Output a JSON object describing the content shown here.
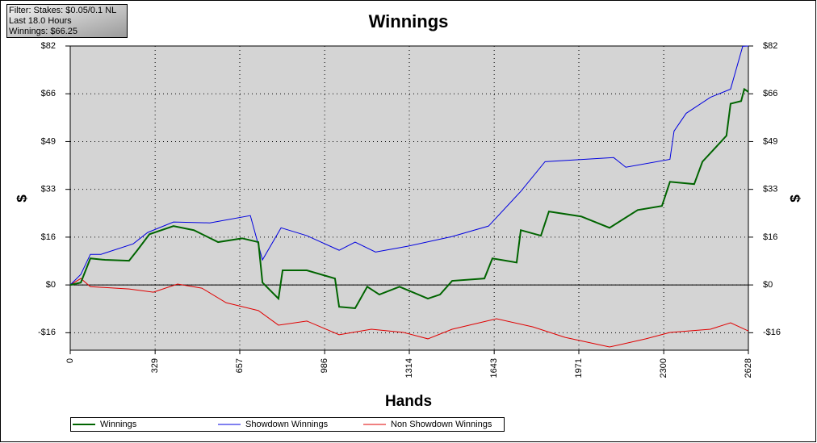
{
  "filter": [
    "Filter: Stakes: $0.05/0.1 NL",
    "Last 18.0 Hours",
    "Winnings: $66.25"
  ],
  "chart_data": {
    "type": "line",
    "title": "Winnings",
    "x_label": "Hands",
    "y_label": "$",
    "y2_label": "$",
    "grid": true,
    "xlim": [
      0,
      2628
    ],
    "xticks": [
      0,
      329,
      657,
      986,
      1314,
      1643,
      1971,
      2300,
      2628
    ],
    "ylim": [
      -22.4,
      82
    ],
    "yticks": [
      {
        "value": -16.4,
        "label": "-$16"
      },
      {
        "value": 0,
        "label": "$0"
      },
      {
        "value": 16.4,
        "label": "$16"
      },
      {
        "value": 32.8,
        "label": "$33"
      },
      {
        "value": 49.2,
        "label": "$49"
      },
      {
        "value": 65.6,
        "label": "$66"
      },
      {
        "value": 82,
        "label": "$82"
      }
    ],
    "series": [
      {
        "name": "Winnings",
        "color": "#006400",
        "x": [
          0,
          41,
          78,
          135,
          228,
          260,
          307,
          400,
          479,
          573,
          666,
          729,
          745,
          807,
          823,
          917,
          1026,
          1042,
          1104,
          1151,
          1198,
          1276,
          1386,
          1433,
          1480,
          1605,
          1636,
          1730,
          1746,
          1824,
          1855,
          1980,
          2090,
          2199,
          2293,
          2324,
          2418,
          2450,
          2543,
          2559,
          2600,
          2612,
          2628
        ],
        "values": [
          0,
          0.8,
          9.1,
          8.6,
          8.3,
          11.9,
          17.4,
          20.2,
          18.8,
          14.7,
          16.0,
          14.7,
          0.8,
          -4.7,
          5.0,
          5.0,
          2.2,
          -7.5,
          -8.0,
          -0.6,
          -3.3,
          -0.6,
          -4.7,
          -3.3,
          1.4,
          2.2,
          9.1,
          7.7,
          18.8,
          16.9,
          25.2,
          23.5,
          19.6,
          25.7,
          27.1,
          35.4,
          34.6,
          42.3,
          51.2,
          62.2,
          63.1,
          67.2,
          66.25
        ]
      },
      {
        "name": "Showdown Winnings",
        "color": "#0000e0",
        "x": [
          0,
          41,
          78,
          119,
          244,
          300,
          400,
          541,
          698,
          745,
          817,
          917,
          1042,
          1104,
          1183,
          1308,
          1480,
          1621,
          1746,
          1840,
          2106,
          2153,
          2324,
          2340,
          2387,
          2481,
          2559,
          2606,
          2628
        ],
        "values": [
          0,
          3.6,
          10.5,
          10.5,
          14.1,
          18.0,
          21.6,
          21.3,
          23.8,
          8.6,
          19.6,
          16.9,
          11.9,
          14.7,
          11.3,
          13.3,
          16.6,
          20.2,
          32.1,
          42.3,
          43.7,
          40.4,
          43.1,
          52.8,
          58.9,
          64.4,
          67.2,
          81.9,
          82
        ]
      },
      {
        "name": "Non Showdown Winnings",
        "color": "#e00000",
        "x": [
          0,
          41,
          78,
          228,
          322,
          416,
          510,
          604,
          729,
          807,
          917,
          1042,
          1167,
          1292,
          1386,
          1480,
          1652,
          1793,
          1918,
          2090,
          2231,
          2324,
          2481,
          2559,
          2628
        ],
        "values": [
          0,
          2.2,
          -0.6,
          -1.4,
          -2.5,
          0.3,
          -1.1,
          -6.1,
          -8.8,
          -13.8,
          -12.4,
          -17.1,
          -15.2,
          -16.3,
          -18.5,
          -15.2,
          -11.6,
          -14.4,
          -18.0,
          -21.3,
          -18.5,
          -16.3,
          -15.2,
          -13.0,
          -15.8
        ]
      }
    ]
  }
}
